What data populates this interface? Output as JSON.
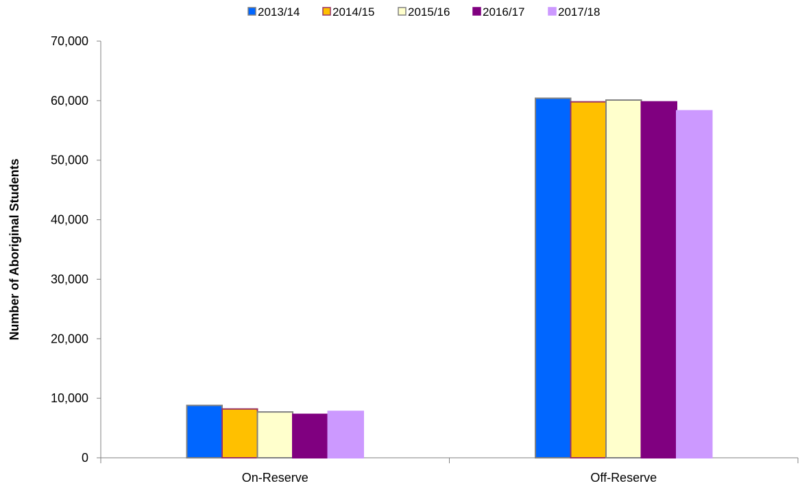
{
  "chart_data": {
    "type": "bar",
    "title": "",
    "xlabel": "",
    "ylabel": "Number of Aboriginal Students",
    "categories": [
      "On-Reserve",
      "Off-Reserve"
    ],
    "ylim": [
      0,
      70000
    ],
    "yticks": [
      0,
      10000,
      20000,
      30000,
      40000,
      50000,
      60000,
      70000
    ],
    "ytick_labels": [
      "0",
      "10,000",
      "20,000",
      "30,000",
      "40,000",
      "50,000",
      "60,000",
      "70,000"
    ],
    "grid": false,
    "legend_position": "top",
    "series": [
      {
        "name": "2013/14",
        "values": [
          8800,
          60400
        ],
        "color": "#0066ff",
        "stroke": "#808080"
      },
      {
        "name": "2014/15",
        "values": [
          8200,
          59800
        ],
        "color": "#ffc000",
        "stroke": "#993366"
      },
      {
        "name": "2015/16",
        "values": [
          7700,
          60100
        ],
        "color": "#ffffcc",
        "stroke": "#808080"
      },
      {
        "name": "2016/17",
        "values": [
          7300,
          59800
        ],
        "color": "#800080",
        "stroke": "#800080"
      },
      {
        "name": "2017/18",
        "values": [
          7800,
          58300
        ],
        "color": "#cc99ff",
        "stroke": "#cc99ff"
      }
    ]
  }
}
